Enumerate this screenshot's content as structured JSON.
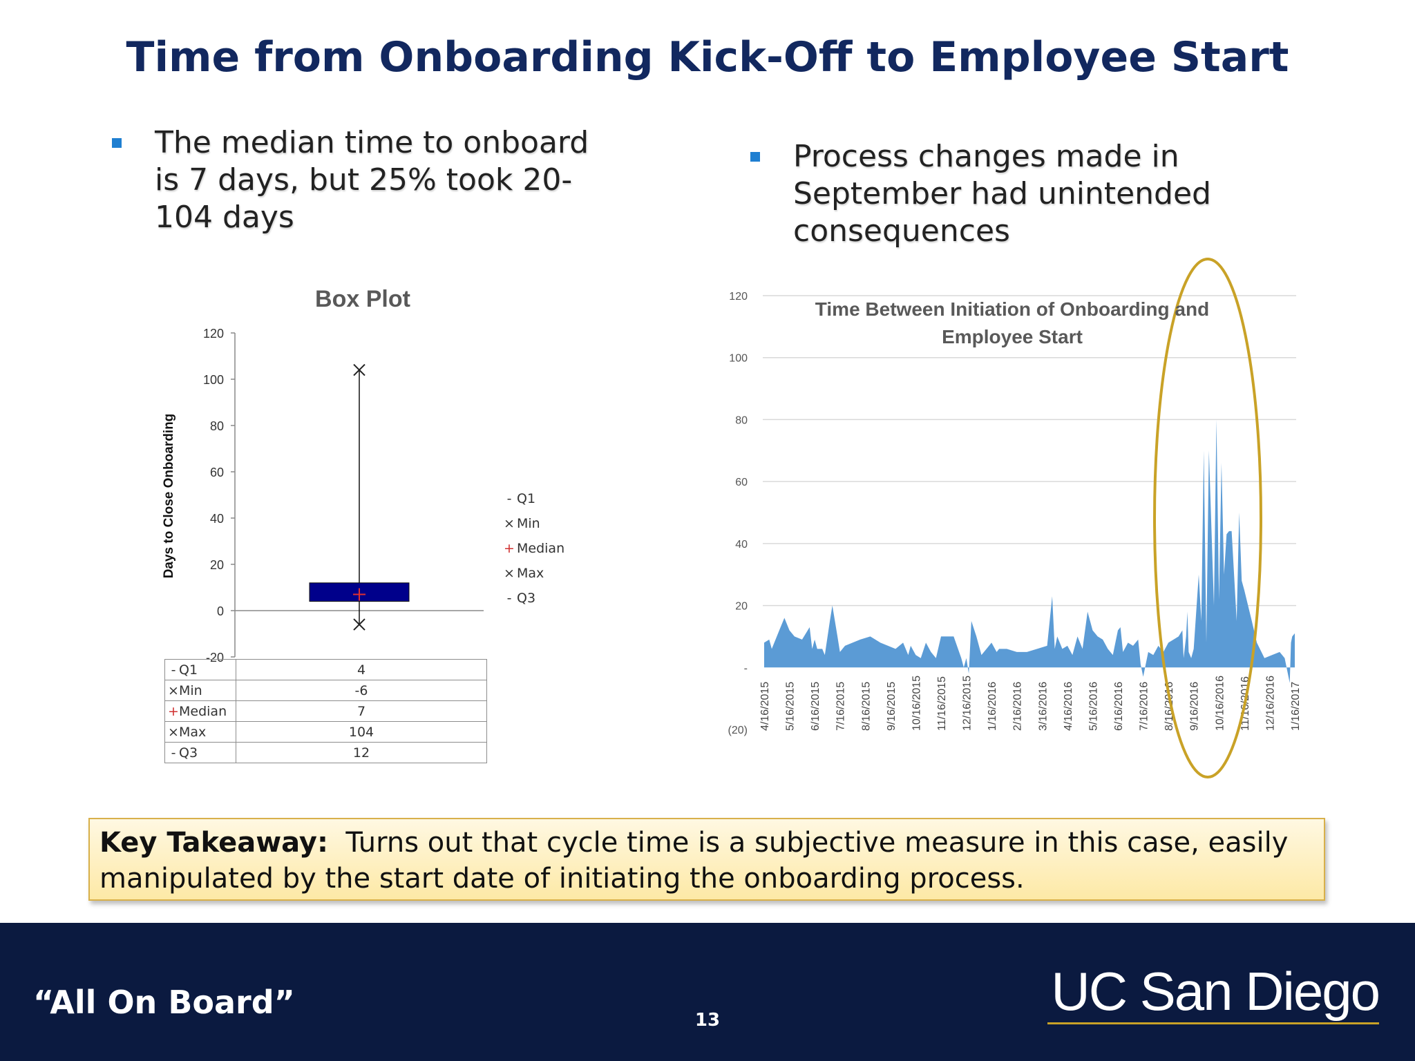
{
  "slide": {
    "title": "Time from Onboarding Kick-Off to Employee Start",
    "bullet_left": "The median time to onboard is 7 days, but 25% took 20-104 days",
    "bullet_right": "Process changes made in September  had unintended consequences",
    "takeaway_label": "Key Takeaway:",
    "takeaway_text": "Turns out that cycle time is a subjective measure in this case, easily manipulated by the start date of initiating the onboarding process.",
    "footer_left": "“All On Board”",
    "page_number": "13",
    "logo_text": "UC San Diego"
  },
  "colors": {
    "title": "#12285f",
    "bullet_square": "#1f7fd1",
    "box_fill": "#00008b",
    "area_fill": "#5b9bd5",
    "ellipse": "#c9a227",
    "footer_bg": "#0b1a40",
    "logo_gold": "#c9a227"
  },
  "chart_data": [
    {
      "type": "box",
      "title": "Box Plot",
      "ylabel": "Days to Close Onboarding",
      "ylim": [
        -20,
        120
      ],
      "yticks": [
        "-20",
        "0",
        "20",
        "40",
        "60",
        "80",
        "100",
        "120"
      ],
      "stats": [
        {
          "name": "Q1",
          "marker": "-",
          "value": 4
        },
        {
          "name": "Min",
          "marker": "×",
          "value": -6
        },
        {
          "name": "Median",
          "marker": "+",
          "value": 7
        },
        {
          "name": "Max",
          "marker": "×",
          "value": 104
        },
        {
          "name": "Q3",
          "marker": "-",
          "value": 12
        }
      ],
      "table_values": [
        "4",
        "-6",
        "7",
        "104",
        "12"
      ],
      "legend": [
        "Q1",
        "Min",
        "Median",
        "Max",
        "Q3"
      ]
    },
    {
      "type": "area",
      "title_line1": "Time Between Initiation of Onboarding and",
      "title_line2": "Employee Start",
      "ylim": [
        -20,
        120
      ],
      "yticks": [
        "(20)",
        "-",
        "20",
        "40",
        "60",
        "80",
        "100",
        "120"
      ],
      "ytick_values": [
        -20,
        0,
        20,
        40,
        60,
        80,
        100,
        120
      ],
      "xlabels": [
        "4/16/2015",
        "5/16/2015",
        "6/16/2015",
        "7/16/2015",
        "8/16/2015",
        "9/16/2015",
        "10/16/2015",
        "11/16/2015",
        "12/16/2015",
        "1/16/2016",
        "2/16/2016",
        "3/16/2016",
        "4/16/2016",
        "5/16/2016",
        "6/16/2016",
        "7/16/2016",
        "8/16/2016",
        "9/16/2016",
        "10/16/2016",
        "11/16/2016",
        "12/16/2016",
        "1/16/2017"
      ],
      "x": [
        0,
        0.2,
        0.3,
        0.6,
        0.8,
        1.0,
        1.2,
        1.5,
        1.8,
        1.9,
        2.0,
        2.1,
        2.3,
        2.4,
        2.6,
        2.7,
        2.9,
        3.0,
        3.2,
        3.5,
        3.8,
        4.2,
        4.6,
        4.9,
        5.2,
        5.5,
        5.7,
        5.8,
        6.0,
        6.2,
        6.4,
        6.6,
        6.8,
        7.0,
        7.2,
        7.5,
        7.8,
        7.9,
        8.0,
        8.1,
        8.2,
        8.4,
        8.6,
        8.8,
        9.0,
        9.2,
        9.3,
        9.6,
        10.0,
        10.4,
        10.8,
        11.2,
        11.4,
        11.5,
        11.6,
        11.8,
        12.0,
        12.2,
        12.4,
        12.6,
        12.8,
        13.0,
        13.2,
        13.4,
        13.6,
        13.8,
        14.0,
        14.1,
        14.2,
        14.4,
        14.6,
        14.8,
        14.9,
        15.0,
        15.2,
        15.4,
        15.6,
        15.8,
        16.0,
        16.2,
        16.4,
        16.55,
        16.6,
        16.7,
        16.75,
        16.8,
        16.9,
        17.0,
        17.2,
        17.3,
        17.4,
        17.5,
        17.6,
        17.8,
        17.9,
        18.0,
        18.1,
        18.2,
        18.3,
        18.4,
        18.5,
        18.7,
        18.8,
        18.9,
        19.0,
        19.3,
        19.5,
        19.8,
        20.1,
        20.4,
        20.6,
        20.8,
        20.85,
        20.9,
        21.0
      ],
      "y": [
        8,
        9,
        6,
        12,
        16,
        12,
        10,
        9,
        13,
        6,
        9,
        6,
        6,
        4,
        15,
        20,
        10,
        5,
        7,
        8,
        9,
        10,
        8,
        7,
        6,
        8,
        4,
        7,
        4,
        3,
        8,
        5,
        3,
        10,
        10,
        10,
        3,
        0,
        3,
        -2,
        15,
        10,
        4,
        6,
        8,
        5,
        6,
        6,
        5,
        5,
        6,
        7,
        23,
        6,
        10,
        6,
        7,
        4,
        10,
        6,
        18,
        12,
        10,
        9,
        6,
        4,
        12,
        13,
        5,
        8,
        7,
        9,
        1,
        -3,
        5,
        4,
        7,
        5,
        8,
        9,
        10,
        12,
        3,
        10,
        18,
        5,
        3,
        6,
        30,
        15,
        70,
        8,
        70,
        20,
        80,
        22,
        66,
        30,
        43,
        44,
        44,
        15,
        50,
        28,
        25,
        15,
        8,
        3,
        4,
        5,
        3,
        -5,
        8,
        10,
        11
      ],
      "highlight": "ellipse around Sep 2016 - Nov 2016"
    }
  ]
}
